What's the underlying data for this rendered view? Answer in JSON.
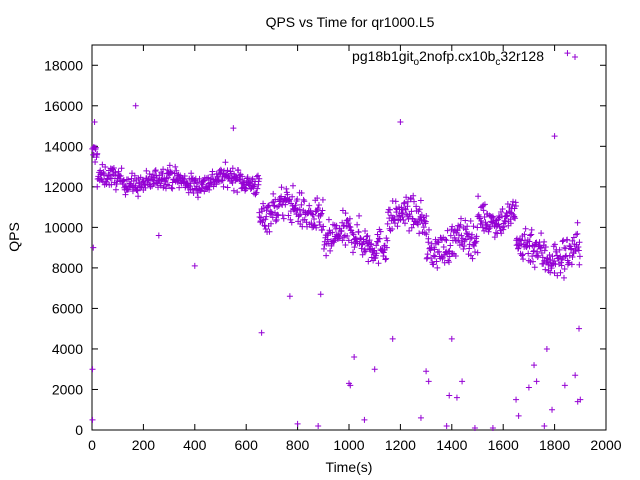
{
  "chart_data": {
    "type": "scatter",
    "title": "QPS vs Time for qr1000.L5",
    "xlabel": "Time(s)",
    "ylabel": "QPS",
    "xlim": [
      0,
      2000
    ],
    "ylim": [
      0,
      19000
    ],
    "xticks": [
      0,
      200,
      400,
      600,
      800,
      1000,
      1200,
      1400,
      1600,
      1800,
      2000
    ],
    "yticks": [
      0,
      2000,
      4000,
      6000,
      8000,
      10000,
      12000,
      14000,
      16000,
      18000
    ],
    "grid": false,
    "legend_position": "top-right",
    "marker": "plus",
    "color": "#9400d3",
    "series": [
      {
        "name_parts": [
          "pg18b1git",
          "o",
          "2nofp.cx10b",
          "c",
          "32r128"
        ],
        "name": "pg18b1git_o2nofp.cx10b_c32r128",
        "trend_segments": [
          {
            "x": [
              0,
              20
            ],
            "y_mean": 13600,
            "spread": 900
          },
          {
            "x": [
              20,
              650
            ],
            "y_mean": 12300,
            "spread": 900
          },
          {
            "x": [
              650,
              900
            ],
            "y_mean": 10800,
            "spread": 1500
          },
          {
            "x": [
              900,
              1150
            ],
            "y_mean": 9400,
            "spread": 1500
          },
          {
            "x": [
              1150,
              1300
            ],
            "y_mean": 10400,
            "spread": 1300
          },
          {
            "x": [
              1300,
              1500
            ],
            "y_mean": 9200,
            "spread": 1500
          },
          {
            "x": [
              1500,
              1650
            ],
            "y_mean": 10600,
            "spread": 1300
          },
          {
            "x": [
              1650,
              1900
            ],
            "y_mean": 8800,
            "spread": 1700
          }
        ],
        "outliers": [
          [
            2,
            3000
          ],
          [
            2,
            500
          ],
          [
            5,
            9000
          ],
          [
            10,
            15200
          ],
          [
            170,
            16000
          ],
          [
            260,
            9600
          ],
          [
            400,
            8100
          ],
          [
            550,
            14900
          ],
          [
            660,
            4800
          ],
          [
            770,
            6600
          ],
          [
            800,
            300
          ],
          [
            880,
            200
          ],
          [
            890,
            6700
          ],
          [
            1000,
            2300
          ],
          [
            1005,
            2200
          ],
          [
            1020,
            3600
          ],
          [
            1060,
            500
          ],
          [
            1100,
            3000
          ],
          [
            1170,
            4500
          ],
          [
            1200,
            15200
          ],
          [
            1280,
            600
          ],
          [
            1300,
            2900
          ],
          [
            1310,
            2400
          ],
          [
            1380,
            200
          ],
          [
            1390,
            1700
          ],
          [
            1400,
            4500
          ],
          [
            1420,
            1600
          ],
          [
            1440,
            2400
          ],
          [
            1490,
            100
          ],
          [
            1560,
            100
          ],
          [
            1650,
            1500
          ],
          [
            1660,
            700
          ],
          [
            1700,
            2100
          ],
          [
            1720,
            3200
          ],
          [
            1730,
            2400
          ],
          [
            1760,
            200
          ],
          [
            1770,
            4000
          ],
          [
            1790,
            1000
          ],
          [
            1800,
            14500
          ],
          [
            1840,
            2200
          ],
          [
            1850,
            18600
          ],
          [
            1880,
            2700
          ],
          [
            1890,
            1400
          ],
          [
            1895,
            5000
          ],
          [
            1900,
            1500
          ]
        ]
      }
    ]
  }
}
